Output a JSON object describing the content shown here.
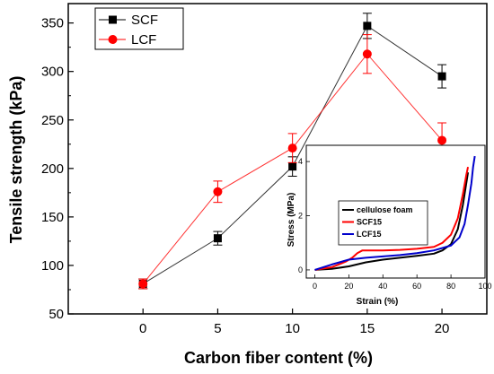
{
  "chart_data": [
    {
      "type": "line",
      "title": "",
      "xlabel": "Carbon fiber content (%)",
      "ylabel": "Tensile strength (kPa)",
      "xlim": [
        -5,
        23
      ],
      "ylim": [
        50,
        370
      ],
      "x_ticks": [
        "0",
        "5",
        "10",
        "15",
        "20"
      ],
      "y_ticks": [
        "50",
        "100",
        "150",
        "200",
        "250",
        "300",
        "350"
      ],
      "x_tick_values": [
        0,
        5,
        10,
        15,
        20
      ],
      "y_tick_values": [
        50,
        100,
        150,
        200,
        250,
        300,
        350
      ],
      "legend_position": "top-left",
      "series": [
        {
          "name": "SCF",
          "color": "#000000",
          "marker": "square",
          "x": [
            0,
            5,
            10,
            15,
            20
          ],
          "y": [
            81,
            128,
            202,
            347,
            295
          ],
          "error": [
            5,
            7,
            10,
            13,
            12
          ]
        },
        {
          "name": "LCF",
          "color": "#ff0000",
          "marker": "circle",
          "x": [
            0,
            5,
            10,
            15,
            20
          ],
          "y": [
            81,
            176,
            221,
            318,
            229
          ],
          "error": [
            5,
            11,
            15,
            20,
            18
          ]
        }
      ]
    },
    {
      "type": "line",
      "title": "",
      "xlabel": "Strain (%)",
      "ylabel": "Stress (MPa)",
      "xlim": [
        -5,
        100
      ],
      "ylim": [
        -0.3,
        4.6
      ],
      "x_ticks": [
        "0",
        "20",
        "40",
        "60",
        "80",
        "100"
      ],
      "y_ticks": [
        "0",
        "2",
        "4"
      ],
      "x_tick_values": [
        0,
        20,
        40,
        60,
        80,
        100
      ],
      "y_tick_values": [
        0,
        2,
        4
      ],
      "legend_position": "middle-left",
      "series": [
        {
          "name": "cellulose foam",
          "color": "#000000",
          "x": [
            0,
            10,
            20,
            30,
            40,
            50,
            60,
            70,
            75,
            80,
            84,
            87,
            89,
            90
          ],
          "y": [
            0,
            0.04,
            0.13,
            0.28,
            0.38,
            0.45,
            0.52,
            0.6,
            0.72,
            0.95,
            1.5,
            2.4,
            3.2,
            3.6
          ]
        },
        {
          "name": "SCF15",
          "color": "#ff0000",
          "x": [
            0,
            10,
            18,
            22,
            25,
            28,
            32,
            40,
            50,
            60,
            70,
            75,
            80,
            84,
            87,
            89,
            90
          ],
          "y": [
            0,
            0.1,
            0.3,
            0.45,
            0.62,
            0.72,
            0.72,
            0.72,
            0.74,
            0.78,
            0.85,
            1.0,
            1.3,
            1.9,
            2.8,
            3.5,
            3.8
          ]
        },
        {
          "name": "LCF15",
          "color": "#0000cc",
          "x": [
            0,
            5,
            10,
            20,
            30,
            40,
            50,
            60,
            70,
            80,
            85,
            88,
            90,
            92,
            93,
            94
          ],
          "y": [
            0,
            0.1,
            0.2,
            0.38,
            0.45,
            0.5,
            0.55,
            0.62,
            0.72,
            0.9,
            1.2,
            1.7,
            2.4,
            3.2,
            3.8,
            4.2
          ]
        }
      ]
    }
  ]
}
